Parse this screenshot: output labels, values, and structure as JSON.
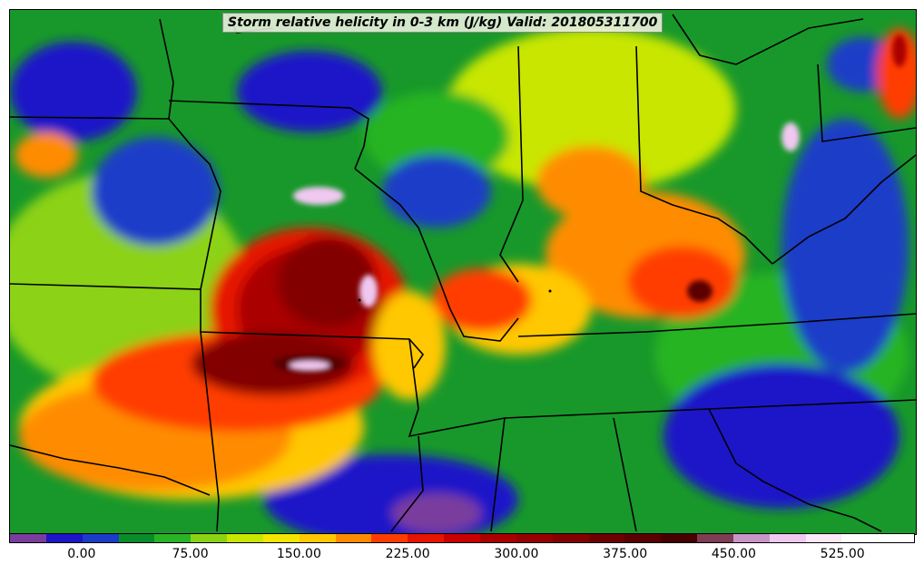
{
  "title": "Storm relative helicity in 0-3 km (J/kg) Valid: 201805311700",
  "colorbar": {
    "colors": [
      "#7a3c9e",
      "#1e14c8",
      "#1a3cc8",
      "#0a8c2a",
      "#28b424",
      "#8cd214",
      "#c8e600",
      "#f5e600",
      "#ffc800",
      "#ff8c00",
      "#ff3c00",
      "#e61400",
      "#c80000",
      "#aa0000",
      "#960000",
      "#820000",
      "#6e0000",
      "#5a0000",
      "#460000",
      "#7e3c55",
      "#c896c8",
      "#f0c8f0",
      "#fde8fa",
      "#ffffff",
      "#ffffff"
    ],
    "tick_labels": [
      "0.00",
      "75.00",
      "150.00",
      "225.00",
      "300.00",
      "375.00",
      "450.00",
      "525.00"
    ],
    "tick_values": [
      0,
      75,
      150,
      225,
      300,
      375,
      450,
      525
    ],
    "range": [
      -50,
      575
    ]
  },
  "map": {
    "region": "central-us",
    "field": "srh-0-3km"
  }
}
